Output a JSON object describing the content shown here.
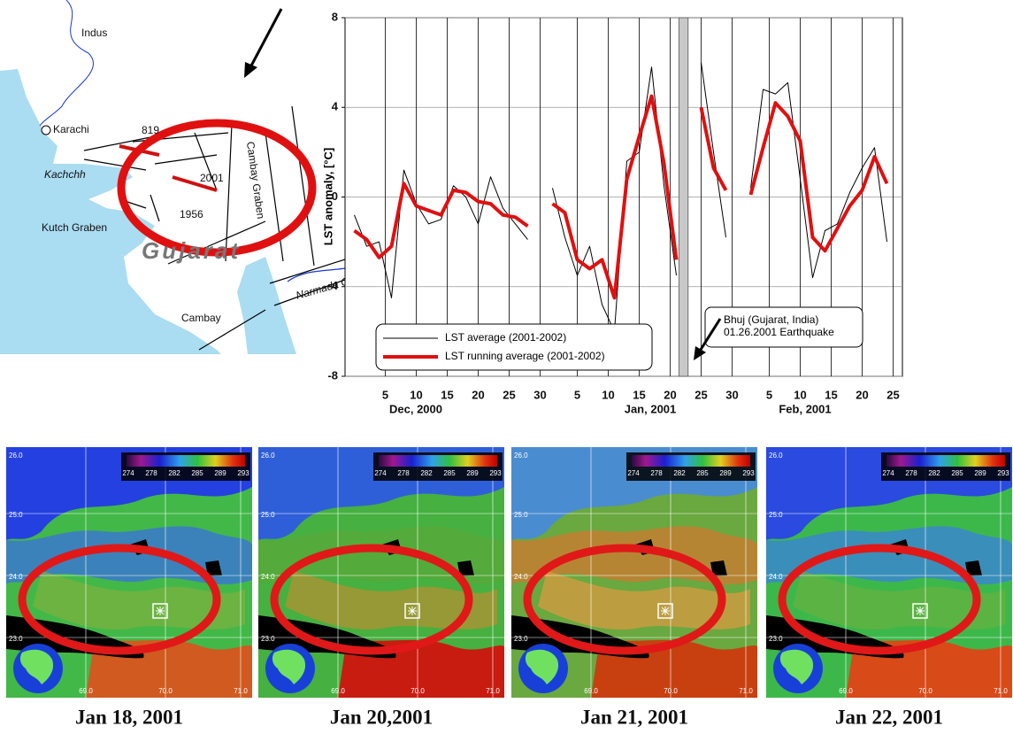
{
  "map": {
    "labels": [
      "Indus",
      "Karachi",
      "Kachchh",
      "Kutch Graben",
      "Gujarat",
      "Cambay",
      "Cambay Graben",
      "Narmada Graben",
      "819",
      "2001",
      "1956"
    ]
  },
  "chart_data": {
    "type": "line",
    "y_label": "LST anomaly, [°C]",
    "x_groups": [
      "Dec, 2000",
      "Jan, 2001",
      "Feb, 2001"
    ],
    "x": [
      0,
      2,
      4,
      6,
      8,
      10,
      12,
      14,
      16,
      18,
      20,
      22,
      24,
      26,
      28,
      30,
      32,
      34,
      36,
      38,
      40,
      42,
      44,
      46,
      48,
      50,
      52,
      54,
      56,
      58,
      60,
      62,
      64,
      66,
      68,
      70,
      72,
      74,
      76,
      78,
      80,
      82,
      84,
      86
    ],
    "series": [
      {
        "name": "LST average (2001-2002)",
        "color": "#000000",
        "width": 1,
        "values": [
          -0.8,
          -2.2,
          -2.0,
          -4.5,
          1.2,
          -0.3,
          -1.2,
          -1.0,
          0.5,
          0.0,
          -1.2,
          0.9,
          -0.5,
          -1.2,
          -1.9,
          null,
          0.4,
          -1.8,
          -3.5,
          -2.2,
          -4.8,
          -6.0,
          1.6,
          2.0,
          5.8,
          0.5,
          -3.5,
          null,
          6.0,
          2.0,
          -1.8,
          null,
          0.4,
          4.8,
          4.6,
          5.1,
          0.8,
          -3.6,
          -1.5,
          -1.2,
          0.2,
          1.3,
          2.2,
          -2.0
        ]
      },
      {
        "name": "LST running average (2001-2002)",
        "color": "#e01010",
        "width": 4,
        "values": [
          -1.5,
          -1.9,
          -2.7,
          -2.2,
          0.6,
          -0.4,
          -0.6,
          -0.8,
          0.3,
          0.2,
          -0.2,
          -0.3,
          -0.8,
          -0.9,
          -1.3,
          null,
          -0.3,
          -0.7,
          -2.8,
          -3.2,
          -2.8,
          -4.5,
          0.8,
          2.7,
          4.5,
          1.5,
          -2.8,
          null,
          4.0,
          1.3,
          0.3,
          null,
          0.1,
          2.2,
          4.2,
          3.6,
          2.5,
          -1.8,
          -2.4,
          -1.4,
          -0.4,
          0.3,
          1.8,
          0.6
        ]
      }
    ],
    "xlim": [
      -1.5,
      88.5
    ],
    "xticks": [
      5,
      10,
      15,
      20,
      25,
      30,
      {
        "value": 36,
        "label": "5"
      },
      {
        "value": 41,
        "label": "10"
      },
      {
        "value": 46,
        "label": "15"
      },
      {
        "value": 51,
        "label": "20"
      },
      {
        "value": 56,
        "label": "25"
      },
      {
        "value": 61,
        "label": "30"
      },
      {
        "value": 67,
        "label": "5"
      },
      {
        "value": 72,
        "label": "10"
      },
      {
        "value": 77,
        "label": "15"
      },
      {
        "value": 82,
        "label": "20"
      },
      {
        "value": 87,
        "label": "25"
      }
    ],
    "ylim": [
      -8,
      8
    ],
    "yticks": [
      -8,
      -4,
      0,
      4,
      8
    ],
    "grid": true,
    "legend": "bottom-left",
    "event_band": [
      52.4,
      53.9
    ],
    "event_color": "#c8c8c8",
    "annotation": [
      "Bhuj (Gujarat, India)",
      "01.26.2001 Earthquake"
    ]
  },
  "images": {
    "captions": [
      "Jan 18, 2001",
      "Jan 20,2001",
      "Jan 21, 2001",
      "Jan 22, 2001"
    ],
    "colorbar_ticks": [
      274,
      278,
      282,
      285,
      289,
      293
    ],
    "lat_labels": [
      "26.0",
      "25.0",
      "24.0",
      "23.0"
    ],
    "lon_labels": [
      "69.0",
      "70.0",
      "71.0"
    ]
  }
}
